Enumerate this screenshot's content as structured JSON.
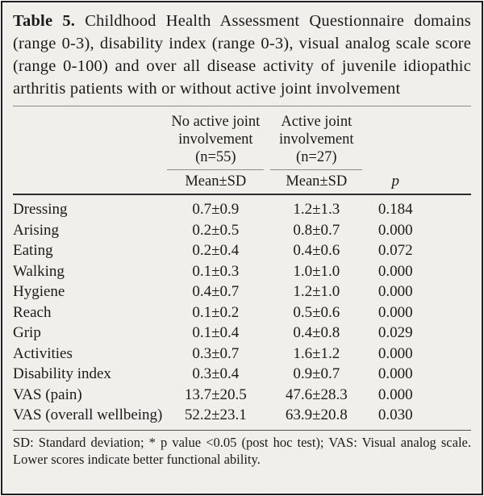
{
  "table": {
    "title_label": "Table 5.",
    "title_text": "Childhood Health Assessment Questionnaire domains (range 0-3), disability index (range 0-3), visual analog scale score (range 0-100) and over all disease activity of juvenile idiopathic arthritis patients with or without active joint involvement",
    "col_groups": [
      {
        "line1": "No active joint",
        "line2": "involvement",
        "n": "(n=55)"
      },
      {
        "line1": "Active joint",
        "line2": "involvement",
        "n": "(n=27)"
      }
    ],
    "subheaders": {
      "col1": "Mean±SD",
      "col2": "Mean±SD",
      "p": "p"
    },
    "rows": [
      {
        "label": "Dressing",
        "no_active": "0.7±0.9",
        "active": "1.2±1.3",
        "p": "0.184"
      },
      {
        "label": "Arising",
        "no_active": "0.2±0.5",
        "active": "0.8±0.7",
        "p": "0.000"
      },
      {
        "label": "Eating",
        "no_active": "0.2±0.4",
        "active": "0.4±0.6",
        "p": "0.072"
      },
      {
        "label": "Walking",
        "no_active": "0.1±0.3",
        "active": "1.0±1.0",
        "p": "0.000"
      },
      {
        "label": "Hygiene",
        "no_active": "0.4±0.7",
        "active": "1.2±1.0",
        "p": "0.000"
      },
      {
        "label": "Reach",
        "no_active": "0.1±0.2",
        "active": "0.5±0.6",
        "p": "0.000"
      },
      {
        "label": "Grip",
        "no_active": "0.1±0.4",
        "active": "0.4±0.8",
        "p": "0.029"
      },
      {
        "label": "Activities",
        "no_active": "0.3±0.7",
        "active": "1.6±1.2",
        "p": "0.000"
      },
      {
        "label": "Disability index",
        "no_active": "0.3±0.4",
        "active": "0.9±0.7",
        "p": "0.000"
      },
      {
        "label": "VAS (pain)",
        "no_active": "13.7±20.5",
        "active": "47.6±28.3",
        "p": "0.000"
      },
      {
        "label": "VAS (overall wellbeing)",
        "no_active": "52.2±23.1",
        "active": "63.9±20.8",
        "p": "0.030"
      }
    ],
    "footnote": "SD: Standard deviation; * p value <0.05 (post hoc test); VAS: Visual analog scale. Lower scores indicate better functional ability.",
    "colors": {
      "panel_background": "#f0efec",
      "border": "#1f1f1f",
      "text": "#1b1b1b",
      "thin_rule": "#8a8a8a",
      "heavy_rule": "#2d2d2d"
    }
  }
}
